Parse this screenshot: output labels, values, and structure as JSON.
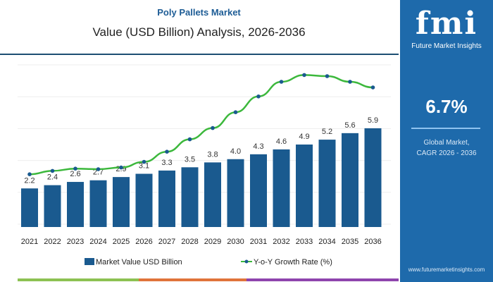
{
  "header": {
    "title": "Poly Pallets Market",
    "subtitle": "Value (USD Billion) Analysis, 2026-2036"
  },
  "panel": {
    "logo": "fmi",
    "logo_sub": "Future Market Insights",
    "cagr": "6.7%",
    "desc_line1": "Global Market,",
    "desc_line2": "CAGR 2026 - 2036",
    "url": "www.futuremarketinsights.com",
    "bg_color": "#1e6aab"
  },
  "chart_data": {
    "type": "bar",
    "categories": [
      "2021",
      "2022",
      "2023",
      "2024",
      "2025",
      "2026",
      "2027",
      "2028",
      "2029",
      "2030",
      "2031",
      "2032",
      "2033",
      "2034",
      "2035",
      "2036"
    ],
    "series": [
      {
        "name": "Market Value USD Billion",
        "type": "bar",
        "color": "#1a5a8f",
        "values": [
          2.2,
          2.4,
          2.6,
          2.7,
          2.9,
          3.1,
          3.3,
          3.5,
          3.8,
          4.0,
          4.3,
          4.6,
          4.9,
          5.2,
          5.6,
          5.9
        ],
        "labels": [
          "2.2",
          "2.4",
          "2.6",
          "2.7",
          "2.9",
          "3.1",
          "3.3",
          "3.5",
          "3.8",
          "4.0",
          "4.3",
          "4.6",
          "4.9",
          "5.2",
          "5.6",
          "5.9"
        ]
      },
      {
        "name": "Y-o-Y Growth Rate (%)",
        "type": "line",
        "color": "#3cb83c",
        "marker_color": "#1a5a8f",
        "values_estimated": [
          0.8,
          1.1,
          1.3,
          1.25,
          1.4,
          1.9,
          2.8,
          3.9,
          4.9,
          6.3,
          7.7,
          9.0,
          9.6,
          9.5,
          9.0,
          8.5
        ]
      }
    ],
    "ylim": [
      0,
      9.8
    ],
    "y2lim": [
      0,
      10
    ],
    "grid": true,
    "legend": "bottom"
  }
}
